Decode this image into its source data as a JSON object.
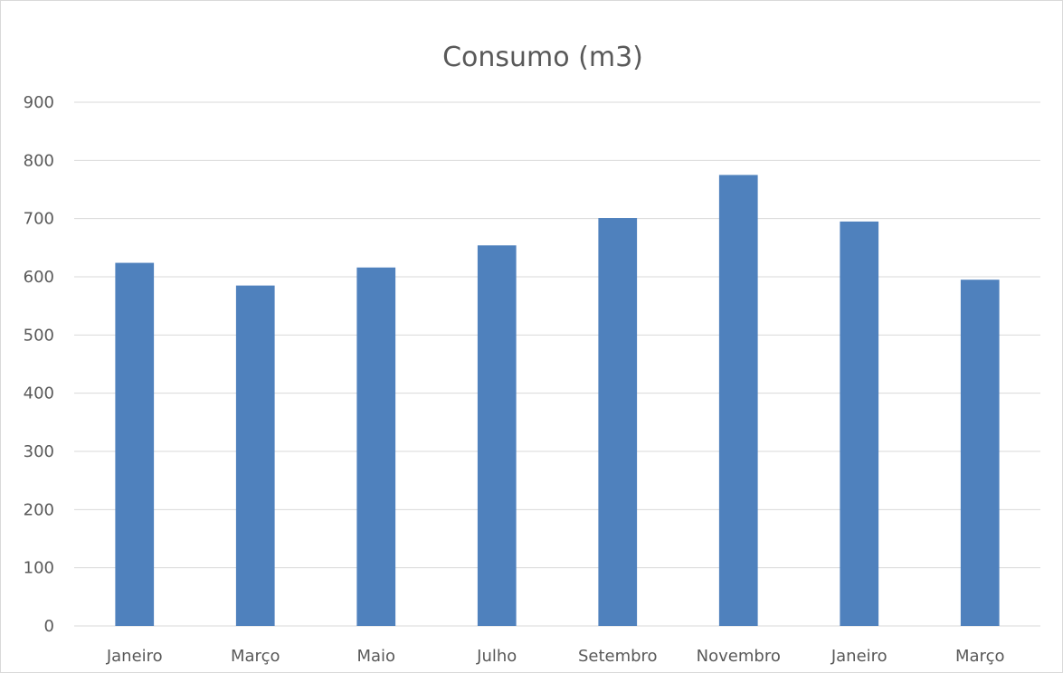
{
  "chart_data": {
    "type": "bar",
    "title": "Consumo (m3)",
    "xlabel": "",
    "ylabel": "",
    "categories": [
      "Janeiro",
      "Março",
      "Maio",
      "Julho",
      "Setembro",
      "Novembro",
      "Janeiro",
      "Março"
    ],
    "values": [
      624,
      585,
      616,
      654,
      701,
      775,
      695,
      595
    ],
    "ylim": [
      0,
      900
    ],
    "yticks": [
      0,
      100,
      200,
      300,
      400,
      500,
      600,
      700,
      800,
      900
    ],
    "grid": true,
    "legend": "none",
    "colors": {
      "bar": "#4f81bd",
      "grid": "#d9d9d9",
      "text": "#595959",
      "border": "#d9d9d9"
    }
  }
}
